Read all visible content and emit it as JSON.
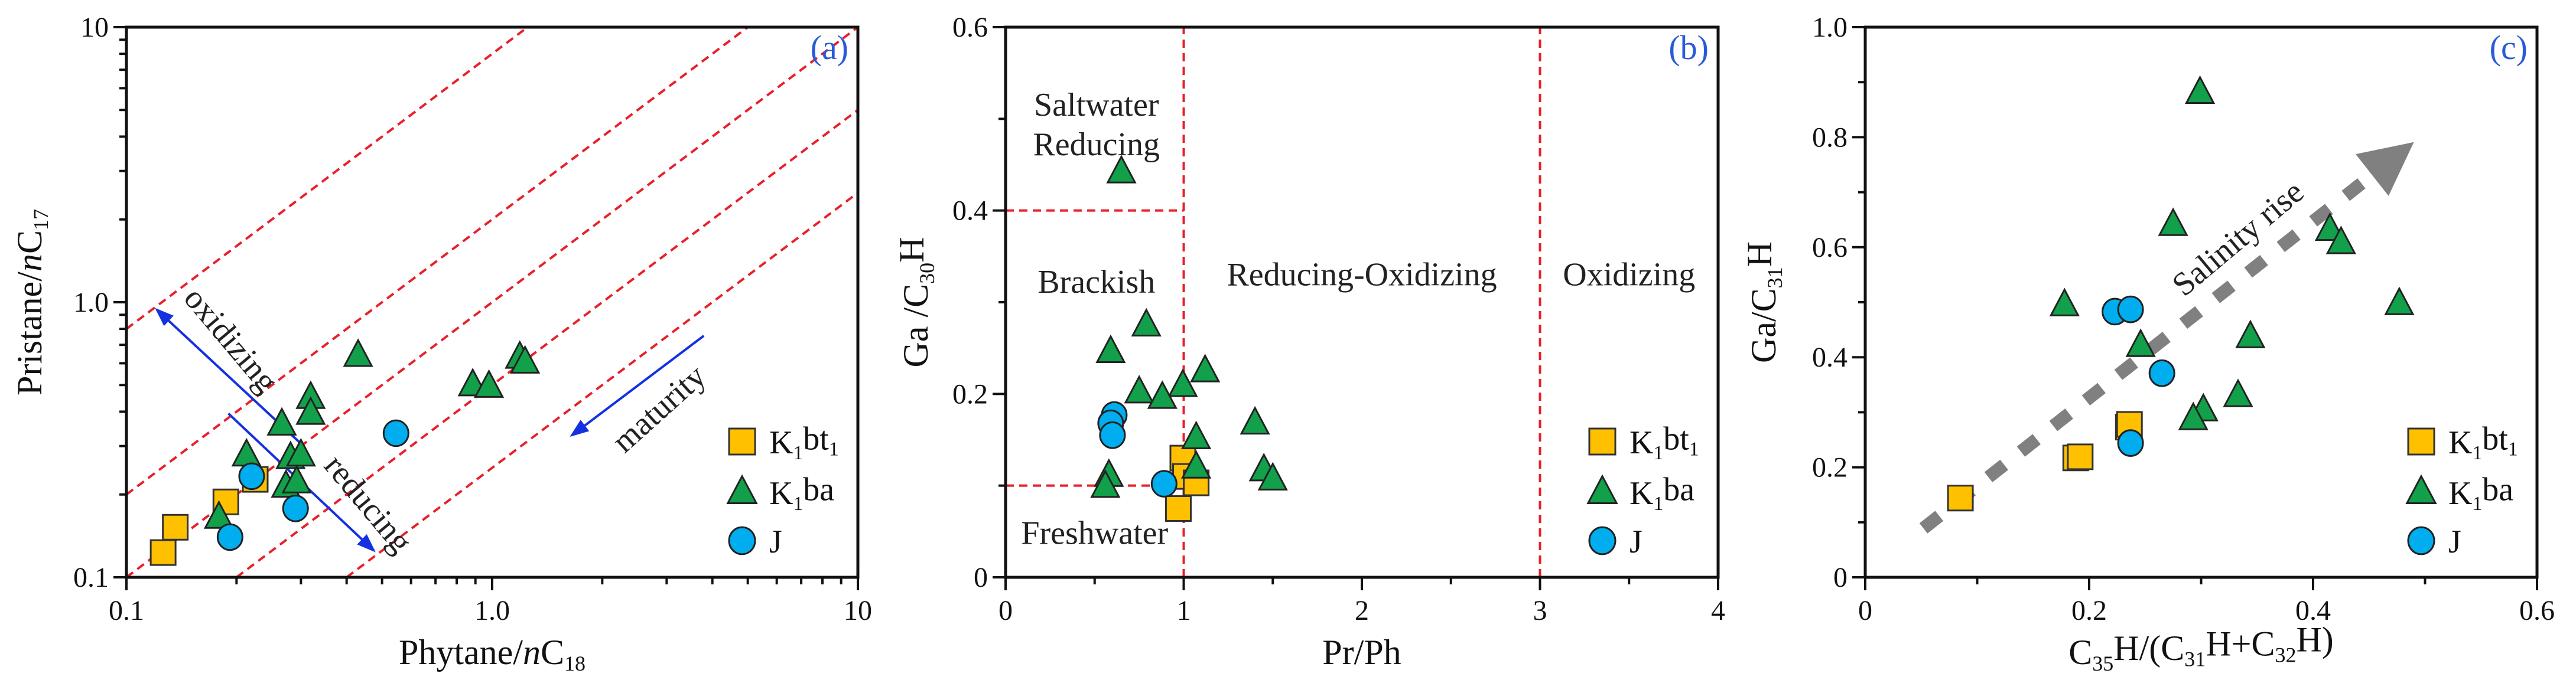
{
  "colors": {
    "square": "#FFC000",
    "triangle": "#12A04A",
    "circle": "#00AEEF",
    "guide": "#E8202A",
    "arrow": "#1530E0",
    "salinity": "#808080"
  },
  "legend": [
    {
      "marker": "square",
      "parts": [
        {
          "t": "K"
        },
        {
          "t": "1",
          "sub": true
        },
        {
          "t": "bt"
        },
        {
          "t": "1",
          "sub": true
        }
      ]
    },
    {
      "marker": "triangle",
      "parts": [
        {
          "t": "K"
        },
        {
          "t": "1",
          "sub": true
        },
        {
          "t": "ba"
        }
      ]
    },
    {
      "marker": "circle",
      "parts": [
        {
          "t": "J"
        }
      ]
    }
  ],
  "chart_data": [
    {
      "type": "scatter",
      "panel_label": "(a)",
      "xscale": "log",
      "yscale": "log",
      "xlim": [
        0.1,
        10
      ],
      "ylim": [
        0.1,
        10
      ],
      "xticks": [
        {
          "v": 0.1,
          "label": "0.1"
        },
        {
          "v": 1,
          "label": "1.0"
        },
        {
          "v": 10,
          "label": "10"
        }
      ],
      "yticks": [
        {
          "v": 0.1,
          "label": "0.1"
        },
        {
          "v": 1,
          "label": "1.0"
        },
        {
          "v": 10,
          "label": "10"
        }
      ],
      "xlabel_parts": [
        {
          "t": "Phytane/"
        },
        {
          "t": "n",
          "i": true
        },
        {
          "t": "C"
        },
        {
          "t": "18",
          "sub": true
        }
      ],
      "ylabel_parts": [
        {
          "t": "Pristane/"
        },
        {
          "t": "n",
          "i": true
        },
        {
          "t": "C"
        },
        {
          "t": "17",
          "sub": true
        }
      ],
      "series": [
        {
          "name": "K1bt1",
          "marker": "square",
          "points": [
            [
              0.126,
              0.123
            ],
            [
              0.136,
              0.152
            ],
            [
              0.187,
              0.188
            ],
            [
              0.225,
              0.227
            ]
          ]
        },
        {
          "name": "K1ba",
          "marker": "triangle",
          "points": [
            [
              0.179,
              0.165
            ],
            [
              0.213,
              0.278
            ],
            [
              0.266,
              0.36
            ],
            [
              0.319,
              0.45
            ],
            [
              0.319,
              0.394
            ],
            [
              0.281,
              0.272
            ],
            [
              0.3,
              0.278
            ],
            [
              0.273,
              0.214
            ],
            [
              0.292,
              0.222
            ],
            [
              0.43,
              0.64
            ],
            [
              0.885,
              0.5
            ],
            [
              0.98,
              0.494
            ],
            [
              1.19,
              0.63
            ],
            [
              1.23,
              0.605
            ]
          ]
        },
        {
          "name": "J",
          "marker": "circle",
          "points": [
            [
              0.546,
              0.334
            ],
            [
              0.22,
              0.233
            ],
            [
              0.29,
              0.178
            ],
            [
              0.192,
              0.14
            ]
          ]
        }
      ],
      "guide_lines": [
        {
          "from": [
            0.1,
            0.8
          ],
          "to": [
            1.25,
            10
          ]
        },
        {
          "from": [
            0.1,
            0.2
          ],
          "to": [
            5,
            10
          ]
        },
        {
          "from": [
            0.1,
            0.1
          ],
          "to": [
            10,
            10
          ]
        },
        {
          "from": [
            0.2,
            0.1
          ],
          "to": [
            10,
            5
          ]
        },
        {
          "from": [
            0.4,
            0.1
          ],
          "to": [
            10,
            2.5
          ]
        }
      ],
      "arrows": [
        {
          "from": [
            0.297,
            0.31
          ],
          "to": [
            0.121,
            0.94
          ],
          "color": "arrow"
        },
        {
          "from": [
            0.19,
            0.394
          ],
          "to": [
            0.475,
            0.125
          ],
          "color": "arrow"
        },
        {
          "from": [
            3.79,
            0.755
          ],
          "to": [
            1.65,
            0.328
          ],
          "color": "arrow"
        }
      ],
      "annotations": [
        {
          "text": "oxidizing",
          "x": 0.193,
          "y": 0.73
        },
        {
          "text": "reducing",
          "x": 0.458,
          "y": 0.185
        },
        {
          "text": "maturity",
          "x": 2.86,
          "y": 0.41
        }
      ]
    },
    {
      "type": "scatter",
      "panel_label": "(b)",
      "xscale": "linear",
      "yscale": "linear",
      "xlim": [
        0,
        4
      ],
      "ylim": [
        0,
        0.6
      ],
      "xticks": [
        {
          "v": 0,
          "label": "0"
        },
        {
          "v": 1,
          "label": "1"
        },
        {
          "v": 2,
          "label": "2"
        },
        {
          "v": 3,
          "label": "3"
        },
        {
          "v": 4,
          "label": "4"
        }
      ],
      "yticks": [
        {
          "v": 0,
          "label": "0"
        },
        {
          "v": 0.2,
          "label": "0.2"
        },
        {
          "v": 0.4,
          "label": "0.4"
        },
        {
          "v": 0.6,
          "label": "0.6"
        }
      ],
      "xminor": 0.5,
      "yminor": 0.1,
      "xlabel_parts": [
        {
          "t": "Pr/Ph"
        }
      ],
      "ylabel_parts": [
        {
          "t": "Ga /C"
        },
        {
          "t": "30",
          "sub": true
        },
        {
          "t": "H"
        }
      ],
      "series": [
        {
          "name": "K1bt1",
          "marker": "square",
          "points": [
            [
              0.995,
              0.13
            ],
            [
              1.01,
              0.11
            ],
            [
              1.07,
              0.103
            ],
            [
              0.97,
              0.075
            ]
          ]
        },
        {
          "name": "K1ba",
          "marker": "triangle",
          "points": [
            [
              0.65,
              0.442
            ],
            [
              0.79,
              0.275
            ],
            [
              0.59,
              0.246
            ],
            [
              1.12,
              0.225
            ],
            [
              0.995,
              0.209
            ],
            [
              0.75,
              0.202
            ],
            [
              0.88,
              0.196
            ],
            [
              1.4,
              0.168
            ],
            [
              1.07,
              0.152
            ],
            [
              1.07,
              0.12
            ],
            [
              1.45,
              0.117
            ],
            [
              1.5,
              0.107
            ],
            [
              0.58,
              0.111
            ],
            [
              0.56,
              0.099
            ]
          ]
        },
        {
          "name": "J",
          "marker": "circle",
          "points": [
            [
              0.61,
              0.177
            ],
            [
              0.59,
              0.168
            ],
            [
              0.6,
              0.155
            ],
            [
              0.89,
              0.102
            ]
          ]
        }
      ],
      "guide_lines": [
        {
          "from": [
            1,
            0
          ],
          "to": [
            1,
            0.6
          ]
        },
        {
          "from": [
            3,
            0
          ],
          "to": [
            3,
            0.6
          ]
        },
        {
          "from": [
            0,
            0.4
          ],
          "to": [
            1,
            0.4
          ]
        },
        {
          "from": [
            0,
            0.1
          ],
          "to": [
            0.83,
            0.1
          ]
        }
      ],
      "arrows": [],
      "annotations": [
        {
          "text": "Saltwater",
          "x": 0.51,
          "y": 0.515
        },
        {
          "text": "Reducing",
          "x": 0.51,
          "y": 0.472
        },
        {
          "text": "Brackish",
          "x": 0.51,
          "y": 0.322
        },
        {
          "text": "Reducing-Oxidizing",
          "x": 2.0,
          "y": 0.33
        },
        {
          "text": "Oxidizing",
          "x": 3.5,
          "y": 0.33
        },
        {
          "text": "Freshwater",
          "x": 0.5,
          "y": 0.048
        }
      ]
    },
    {
      "type": "scatter",
      "panel_label": "(c)",
      "xscale": "linear",
      "yscale": "linear",
      "xlim": [
        0,
        0.6
      ],
      "ylim": [
        0,
        1.0
      ],
      "xticks": [
        {
          "v": 0,
          "label": "0"
        },
        {
          "v": 0.2,
          "label": "0.2"
        },
        {
          "v": 0.4,
          "label": "0.4"
        },
        {
          "v": 0.6,
          "label": "0.6"
        }
      ],
      "yticks": [
        {
          "v": 0,
          "label": "0"
        },
        {
          "v": 0.2,
          "label": "0.2"
        },
        {
          "v": 0.4,
          "label": "0.4"
        },
        {
          "v": 0.6,
          "label": "0.6"
        },
        {
          "v": 0.8,
          "label": "0.8"
        },
        {
          "v": 1.0,
          "label": "1.0"
        }
      ],
      "xminor": 0.1,
      "yminor": 0.1,
      "xlabel_parts": [
        {
          "t": "C"
        },
        {
          "t": "35",
          "sub": true
        },
        {
          "t": "H/(C"
        },
        {
          "t": "31",
          "sub": true
        },
        {
          "t": "H+C"
        },
        {
          "t": "32",
          "sub": true
        },
        {
          "t": "H)"
        }
      ],
      "ylabel_parts": [
        {
          "t": "Ga/C"
        },
        {
          "t": "31",
          "sub": true
        },
        {
          "t": "H"
        }
      ],
      "series": [
        {
          "name": "K1bt1",
          "marker": "square",
          "points": [
            [
              0.085,
              0.144
            ],
            [
              0.188,
              0.217
            ],
            [
              0.192,
              0.219
            ],
            [
              0.235,
              0.273
            ],
            [
              0.236,
              0.278
            ]
          ]
        },
        {
          "name": "K1ba",
          "marker": "triangle",
          "points": [
            [
              0.299,
              0.881
            ],
            [
              0.275,
              0.641
            ],
            [
              0.415,
              0.632
            ],
            [
              0.425,
              0.608
            ],
            [
              0.178,
              0.495
            ],
            [
              0.477,
              0.497
            ],
            [
              0.344,
              0.437
            ],
            [
              0.246,
              0.421
            ],
            [
              0.333,
              0.33
            ],
            [
              0.302,
              0.304
            ],
            [
              0.293,
              0.288
            ]
          ]
        },
        {
          "name": "J",
          "marker": "circle",
          "points": [
            [
              0.223,
              0.483
            ],
            [
              0.237,
              0.487
            ],
            [
              0.265,
              0.371
            ],
            [
              0.237,
              0.244
            ]
          ]
        }
      ],
      "guide_lines": [],
      "arrows": [
        {
          "from": [
            0.052,
            0.089
          ],
          "to": [
            0.49,
            0.791
          ],
          "color": "salinity",
          "dashed": true
        }
      ],
      "annotations": [
        {
          "text": "Salinity rise",
          "x": 0.333,
          "y": 0.616
        }
      ]
    }
  ]
}
